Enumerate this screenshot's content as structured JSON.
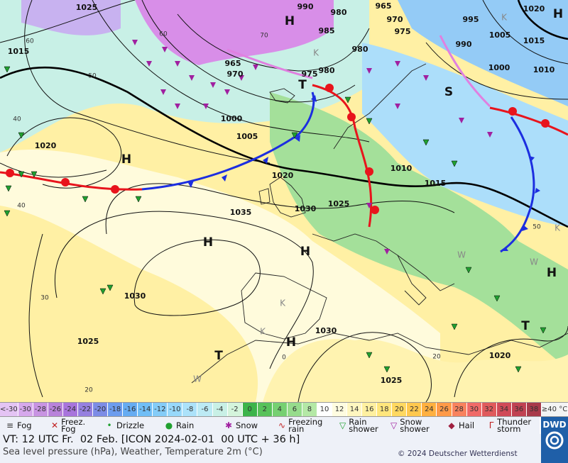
{
  "map": {
    "pressure_labels": [
      "1025",
      "990",
      "980",
      "965",
      "970",
      "975",
      "995",
      "1020",
      "985",
      "980",
      "1005",
      "1015",
      "990",
      "1000",
      "1010",
      "1015",
      "965",
      "970",
      "975",
      "980",
      "1000",
      "1005",
      "1020",
      "1020",
      "1010",
      "1015",
      "1030",
      "1025",
      "1035",
      "1030",
      "1025",
      "1030",
      "1020",
      "1025"
    ],
    "grid_labels": [
      "60",
      "50",
      "40",
      "40",
      "30",
      "20",
      "0",
      "20",
      "60",
      "70",
      "50"
    ],
    "systems": [
      "H",
      "H",
      "H",
      "H",
      "H",
      "H",
      "H",
      "T",
      "T",
      "T",
      "S"
    ],
    "secondary": [
      "K",
      "K",
      "K",
      "K",
      "K",
      "W",
      "W",
      "W"
    ]
  },
  "legend": {
    "scale": [
      {
        "label": "<-30",
        "color": "#e4c4f4"
      },
      {
        "label": "-30",
        "color": "#d6a8ec"
      },
      {
        "label": "-28",
        "color": "#c894e2"
      },
      {
        "label": "-26",
        "color": "#b882da"
      },
      {
        "label": "-24",
        "color": "#a874dc"
      },
      {
        "label": "-22",
        "color": "#9680e0"
      },
      {
        "label": "-20",
        "color": "#7c8ce6"
      },
      {
        "label": "-18",
        "color": "#6c9cee"
      },
      {
        "label": "-16",
        "color": "#66acf2"
      },
      {
        "label": "-14",
        "color": "#70bef6"
      },
      {
        "label": "-12",
        "color": "#84ccf8"
      },
      {
        "label": "-10",
        "color": "#98d8fa"
      },
      {
        "label": "-8",
        "color": "#ace2fa"
      },
      {
        "label": "-6",
        "color": "#bceaf4"
      },
      {
        "label": "-4",
        "color": "#c8f0e6"
      },
      {
        "label": "-2",
        "color": "#d4f4dc"
      },
      {
        "label": "0",
        "color": "#3cb44a"
      },
      {
        "label": "2",
        "color": "#58c25a"
      },
      {
        "label": "4",
        "color": "#76d072"
      },
      {
        "label": "6",
        "color": "#96dc8c"
      },
      {
        "label": "8",
        "color": "#b4e8a6"
      },
      {
        "label": "10",
        "color": "#ffffff"
      },
      {
        "label": "12",
        "color": "#fffce0"
      },
      {
        "label": "14",
        "color": "#fff6c0"
      },
      {
        "label": "16",
        "color": "#fff0a0"
      },
      {
        "label": "18",
        "color": "#ffe67c"
      },
      {
        "label": "20",
        "color": "#ffd860"
      },
      {
        "label": "22",
        "color": "#ffc84e"
      },
      {
        "label": "24",
        "color": "#ffb040"
      },
      {
        "label": "26",
        "color": "#ff9a48"
      },
      {
        "label": "28",
        "color": "#f8825e"
      },
      {
        "label": "30",
        "color": "#f06a68"
      },
      {
        "label": "32",
        "color": "#e05a5c"
      },
      {
        "label": "34",
        "color": "#d04a58"
      },
      {
        "label": "36",
        "color": "#c04252"
      },
      {
        "label": "38",
        "color": "#a83a4a"
      },
      {
        "label": "≥40 °C",
        "color": "#f4f4f4"
      }
    ],
    "weather": [
      "Fog",
      "Freez. Fog",
      "Drizzle",
      "Rain",
      "Snow",
      "Freezing rain",
      "Rain shower",
      "Snow shower",
      "Hail",
      "Thunder storm"
    ]
  },
  "footer": {
    "valid_time": "VT: 12 UTC Fr.  02 Feb. [ICON 2024-02-01  00 UTC + 36 h]",
    "subtitle": "Sea level pressure (hPa), Weather, Temperature 2m (°C)",
    "copyright": "© 2024 Deutscher Wetterdienst",
    "logo": "DWD"
  }
}
